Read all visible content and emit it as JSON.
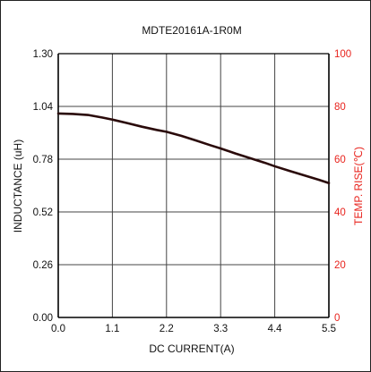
{
  "chart_data": {
    "type": "line",
    "title": "MDTE20161A-1R0M",
    "xlabel": "DC CURRENT(A)",
    "ylabel": "INDUCTANCE (uH)",
    "y2label": "TEMP. RISE(℃)",
    "xlim": [
      0,
      5.5
    ],
    "ylim": [
      0,
      1.3
    ],
    "y2lim": [
      0,
      100
    ],
    "x_ticks": [
      "0.0",
      "1.1",
      "2.2",
      "3.3",
      "4.4",
      "5.5"
    ],
    "y_ticks": [
      "0.00",
      "0.26",
      "0.52",
      "0.78",
      "1.04",
      "1.30"
    ],
    "y2_ticks": [
      "0",
      "20",
      "40",
      "60",
      "80",
      "100"
    ],
    "grid": true,
    "series": [
      {
        "axis": "left",
        "x": [
          0.0,
          0.3,
          0.6,
          0.9,
          1.1,
          1.4,
          1.7,
          2.0,
          2.2,
          2.5,
          2.8,
          3.1,
          3.3,
          3.6,
          3.9,
          4.2,
          4.4,
          4.7,
          5.0,
          5.3,
          5.5
        ],
        "y": [
          1.005,
          1.003,
          0.998,
          0.985,
          0.975,
          0.958,
          0.94,
          0.924,
          0.915,
          0.895,
          0.872,
          0.848,
          0.833,
          0.808,
          0.785,
          0.762,
          0.745,
          0.722,
          0.7,
          0.678,
          0.662
        ]
      }
    ]
  },
  "colors": {
    "frame": "#222222",
    "axis": "#000000",
    "grid": "#444444",
    "left_axis_text": "#111111",
    "right_axis_text": "#e8231d",
    "curve": "#2a0a0a"
  }
}
